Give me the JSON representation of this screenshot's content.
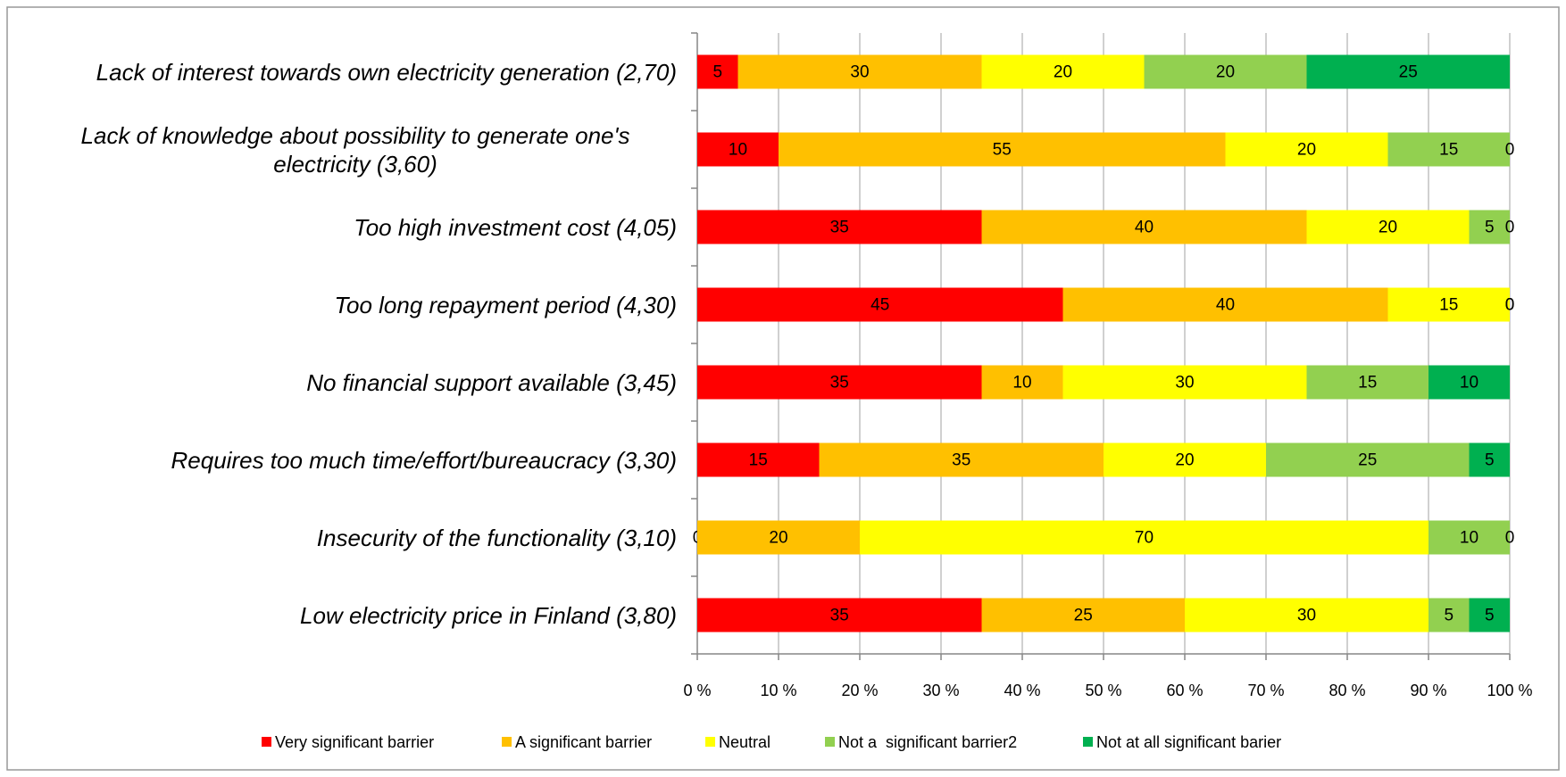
{
  "chart_data": {
    "type": "bar",
    "orientation": "horizontal",
    "stacked": true,
    "categories": [
      "Lack of interest towards own electricity generation (2,70)",
      "Lack of knowledge about possibility to generate one's electricity (3,60)",
      "Too high investment cost (4,05)",
      "Too long repayment period (4,30)",
      "No financial support available (3,45)",
      "Requires too much time/effort/bureaucracy (3,30)",
      "Insecurity of the functionality (3,10)",
      "Low electricity price in Finland (3,80)"
    ],
    "series": [
      {
        "name": "Very significant barrier",
        "color": "#ff0000",
        "values": [
          5,
          10,
          35,
          45,
          35,
          15,
          0,
          35
        ]
      },
      {
        "name": "A significant barrier",
        "color": "#ffc000",
        "values": [
          30,
          55,
          40,
          40,
          10,
          35,
          20,
          25
        ]
      },
      {
        "name": "Neutral",
        "color": "#ffff00",
        "values": [
          20,
          20,
          20,
          15,
          30,
          20,
          70,
          30
        ]
      },
      {
        "name": "Not a  significant barrier2",
        "color": "#92d050",
        "values": [
          20,
          15,
          5,
          0,
          15,
          25,
          10,
          5
        ]
      },
      {
        "name": "Not at all significant barier",
        "color": "#00b050",
        "values": [
          25,
          0,
          0,
          0,
          10,
          5,
          0,
          5
        ]
      }
    ],
    "xlim": [
      0,
      100
    ],
    "xticks": [
      {
        "value": 0,
        "label": "0 %"
      },
      {
        "value": 10,
        "label": "10 %"
      },
      {
        "value": 20,
        "label": "20 %"
      },
      {
        "value": 30,
        "label": "30 %"
      },
      {
        "value": 40,
        "label": "40 %"
      },
      {
        "value": 50,
        "label": "50 %"
      },
      {
        "value": 60,
        "label": "60 %"
      },
      {
        "value": 70,
        "label": "70 %"
      },
      {
        "value": 80,
        "label": "80 %"
      },
      {
        "value": 90,
        "label": "90 %"
      },
      {
        "value": 100,
        "label": "100 %"
      }
    ],
    "grid": true,
    "legend": "bottom"
  }
}
